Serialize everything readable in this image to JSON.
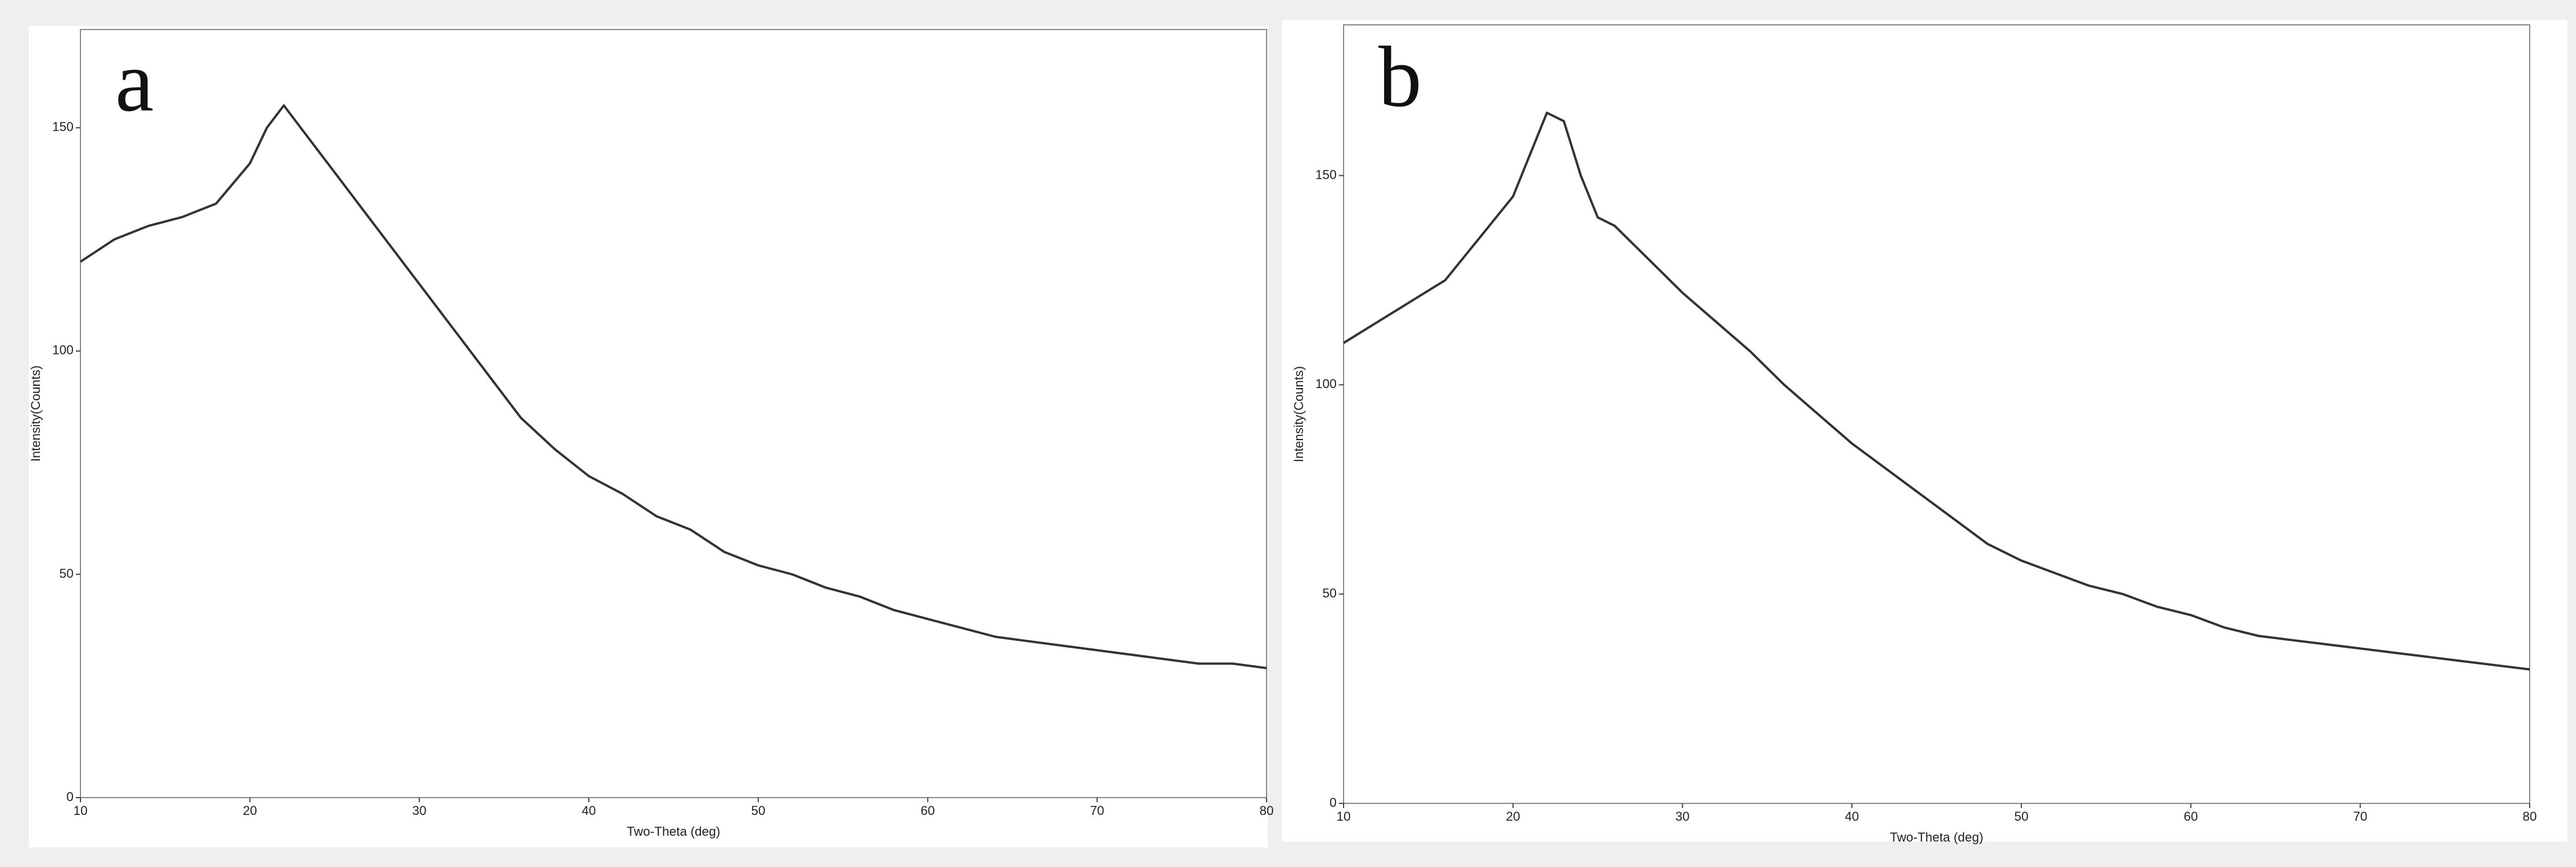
{
  "chart_data": [
    {
      "type": "line",
      "title": "a",
      "x_label": "Two-Theta (deg)",
      "y_label": "Intensity(Counts)",
      "color": "#333333",
      "x": [
        10,
        12,
        14,
        16,
        18,
        20,
        21,
        22,
        23,
        24,
        25,
        26,
        28,
        30,
        32,
        34,
        36,
        38,
        40,
        42,
        44,
        46,
        48,
        50,
        52,
        54,
        56,
        58,
        60,
        62,
        64,
        66,
        68,
        70,
        72,
        74,
        76,
        78,
        80
      ],
      "values": [
        120,
        125,
        128,
        130,
        133,
        142,
        150,
        155,
        150,
        145,
        140,
        135,
        125,
        115,
        105,
        95,
        85,
        78,
        72,
        68,
        63,
        60,
        55,
        52,
        50,
        47,
        45,
        42,
        40,
        38,
        36,
        35,
        34,
        33,
        32,
        31,
        30,
        30,
        29
      ],
      "xlim": [
        10,
        80
      ],
      "ylim": [
        0,
        172
      ],
      "xticks": [
        10,
        20,
        30,
        40,
        50,
        60,
        70,
        80
      ],
      "yticks": [
        0,
        50,
        100,
        150
      ]
    },
    {
      "type": "line",
      "title": "b",
      "x_label": "Two-Theta (deg)",
      "y_label": "Intensity(Counts)",
      "color": "#333333",
      "x": [
        10,
        12,
        14,
        16,
        18,
        20,
        21,
        22,
        23,
        24,
        25,
        26,
        28,
        30,
        32,
        34,
        36,
        38,
        40,
        42,
        44,
        46,
        48,
        50,
        52,
        54,
        56,
        58,
        60,
        62,
        64,
        66,
        68,
        70,
        72,
        74,
        76,
        78,
        80
      ],
      "values": [
        110,
        115,
        120,
        125,
        135,
        145,
        155,
        165,
        163,
        150,
        140,
        138,
        130,
        122,
        115,
        108,
        100,
        93,
        86,
        80,
        74,
        68,
        62,
        58,
        55,
        52,
        50,
        47,
        45,
        42,
        40,
        39,
        38,
        37,
        36,
        35,
        34,
        33,
        32
      ],
      "xlim": [
        10,
        80
      ],
      "ylim": [
        0,
        186
      ],
      "xticks": [
        10,
        20,
        30,
        40,
        50,
        60,
        70,
        80
      ],
      "yticks": [
        0,
        50,
        100,
        150
      ]
    }
  ]
}
